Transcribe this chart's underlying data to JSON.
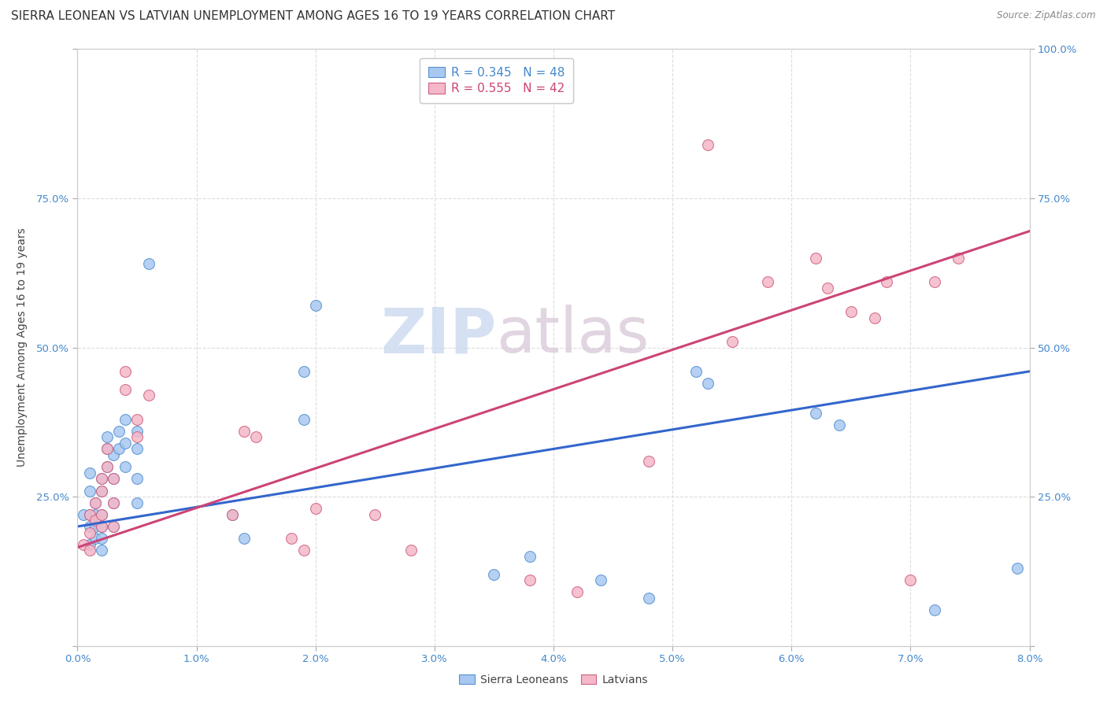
{
  "title": "SIERRA LEONEAN VS LATVIAN UNEMPLOYMENT AMONG AGES 16 TO 19 YEARS CORRELATION CHART",
  "source": "Source: ZipAtlas.com",
  "ylabel": "Unemployment Among Ages 16 to 19 years",
  "xlim": [
    0.0,
    0.08
  ],
  "ylim": [
    0.0,
    1.0
  ],
  "xticks": [
    0.0,
    0.01,
    0.02,
    0.03,
    0.04,
    0.05,
    0.06,
    0.07,
    0.08
  ],
  "yticks": [
    0.0,
    0.25,
    0.5,
    0.75,
    1.0
  ],
  "left_ytick_labels": [
    "",
    "25.0%",
    "50.0%",
    "75.0%",
    ""
  ],
  "right_ytick_labels": [
    "",
    "25.0%",
    "50.0%",
    "75.0%",
    "100.0%"
  ],
  "xtick_labels": [
    "0.0%",
    "1.0%",
    "2.0%",
    "3.0%",
    "4.0%",
    "5.0%",
    "6.0%",
    "7.0%",
    "8.0%"
  ],
  "legend_blue_label": "R = 0.345   N = 48",
  "legend_pink_label": "R = 0.555   N = 42",
  "blue_color": "#A8C8F0",
  "pink_color": "#F4B8C8",
  "blue_edge_color": "#5590D0",
  "pink_edge_color": "#D06080",
  "blue_line_color": "#3366CC",
  "pink_line_color": "#CC4477",
  "watermark_text": "ZIPAtlas",
  "blue_points_x": [
    0.0005,
    0.001,
    0.001,
    0.001,
    0.001,
    0.001,
    0.0015,
    0.0015,
    0.0015,
    0.0015,
    0.002,
    0.002,
    0.002,
    0.002,
    0.002,
    0.002,
    0.0025,
    0.0025,
    0.0025,
    0.003,
    0.003,
    0.003,
    0.003,
    0.0035,
    0.0035,
    0.004,
    0.004,
    0.004,
    0.005,
    0.005,
    0.005,
    0.005,
    0.006,
    0.013,
    0.014,
    0.019,
    0.019,
    0.02,
    0.035,
    0.038,
    0.044,
    0.048,
    0.052,
    0.053,
    0.062,
    0.064,
    0.072,
    0.079
  ],
  "blue_points_y": [
    0.22,
    0.29,
    0.26,
    0.22,
    0.2,
    0.17,
    0.24,
    0.22,
    0.2,
    0.18,
    0.28,
    0.26,
    0.22,
    0.2,
    0.18,
    0.16,
    0.35,
    0.33,
    0.3,
    0.32,
    0.28,
    0.24,
    0.2,
    0.36,
    0.33,
    0.38,
    0.34,
    0.3,
    0.36,
    0.33,
    0.28,
    0.24,
    0.64,
    0.22,
    0.18,
    0.46,
    0.38,
    0.57,
    0.12,
    0.15,
    0.11,
    0.08,
    0.46,
    0.44,
    0.39,
    0.37,
    0.06,
    0.13
  ],
  "pink_points_x": [
    0.0005,
    0.001,
    0.001,
    0.001,
    0.0015,
    0.0015,
    0.002,
    0.002,
    0.002,
    0.002,
    0.0025,
    0.0025,
    0.003,
    0.003,
    0.003,
    0.004,
    0.004,
    0.005,
    0.005,
    0.006,
    0.013,
    0.014,
    0.015,
    0.018,
    0.019,
    0.02,
    0.025,
    0.028,
    0.038,
    0.042,
    0.048,
    0.053,
    0.055,
    0.058,
    0.062,
    0.063,
    0.065,
    0.067,
    0.068,
    0.07,
    0.072,
    0.074
  ],
  "pink_points_y": [
    0.17,
    0.22,
    0.19,
    0.16,
    0.24,
    0.21,
    0.28,
    0.26,
    0.22,
    0.2,
    0.33,
    0.3,
    0.28,
    0.24,
    0.2,
    0.46,
    0.43,
    0.38,
    0.35,
    0.42,
    0.22,
    0.36,
    0.35,
    0.18,
    0.16,
    0.23,
    0.22,
    0.16,
    0.11,
    0.09,
    0.31,
    0.84,
    0.51,
    0.61,
    0.65,
    0.6,
    0.56,
    0.55,
    0.61,
    0.11,
    0.61,
    0.65
  ],
  "blue_line_x": [
    0.0,
    0.08
  ],
  "blue_line_y": [
    0.2,
    0.46
  ],
  "pink_line_x": [
    0.0,
    0.08
  ],
  "pink_line_y": [
    0.165,
    0.695
  ],
  "background_color": "#FFFFFF",
  "grid_color": "#DDDDDD",
  "title_fontsize": 11,
  "axis_label_fontsize": 10,
  "tick_fontsize": 9.5,
  "marker_size": 100
}
